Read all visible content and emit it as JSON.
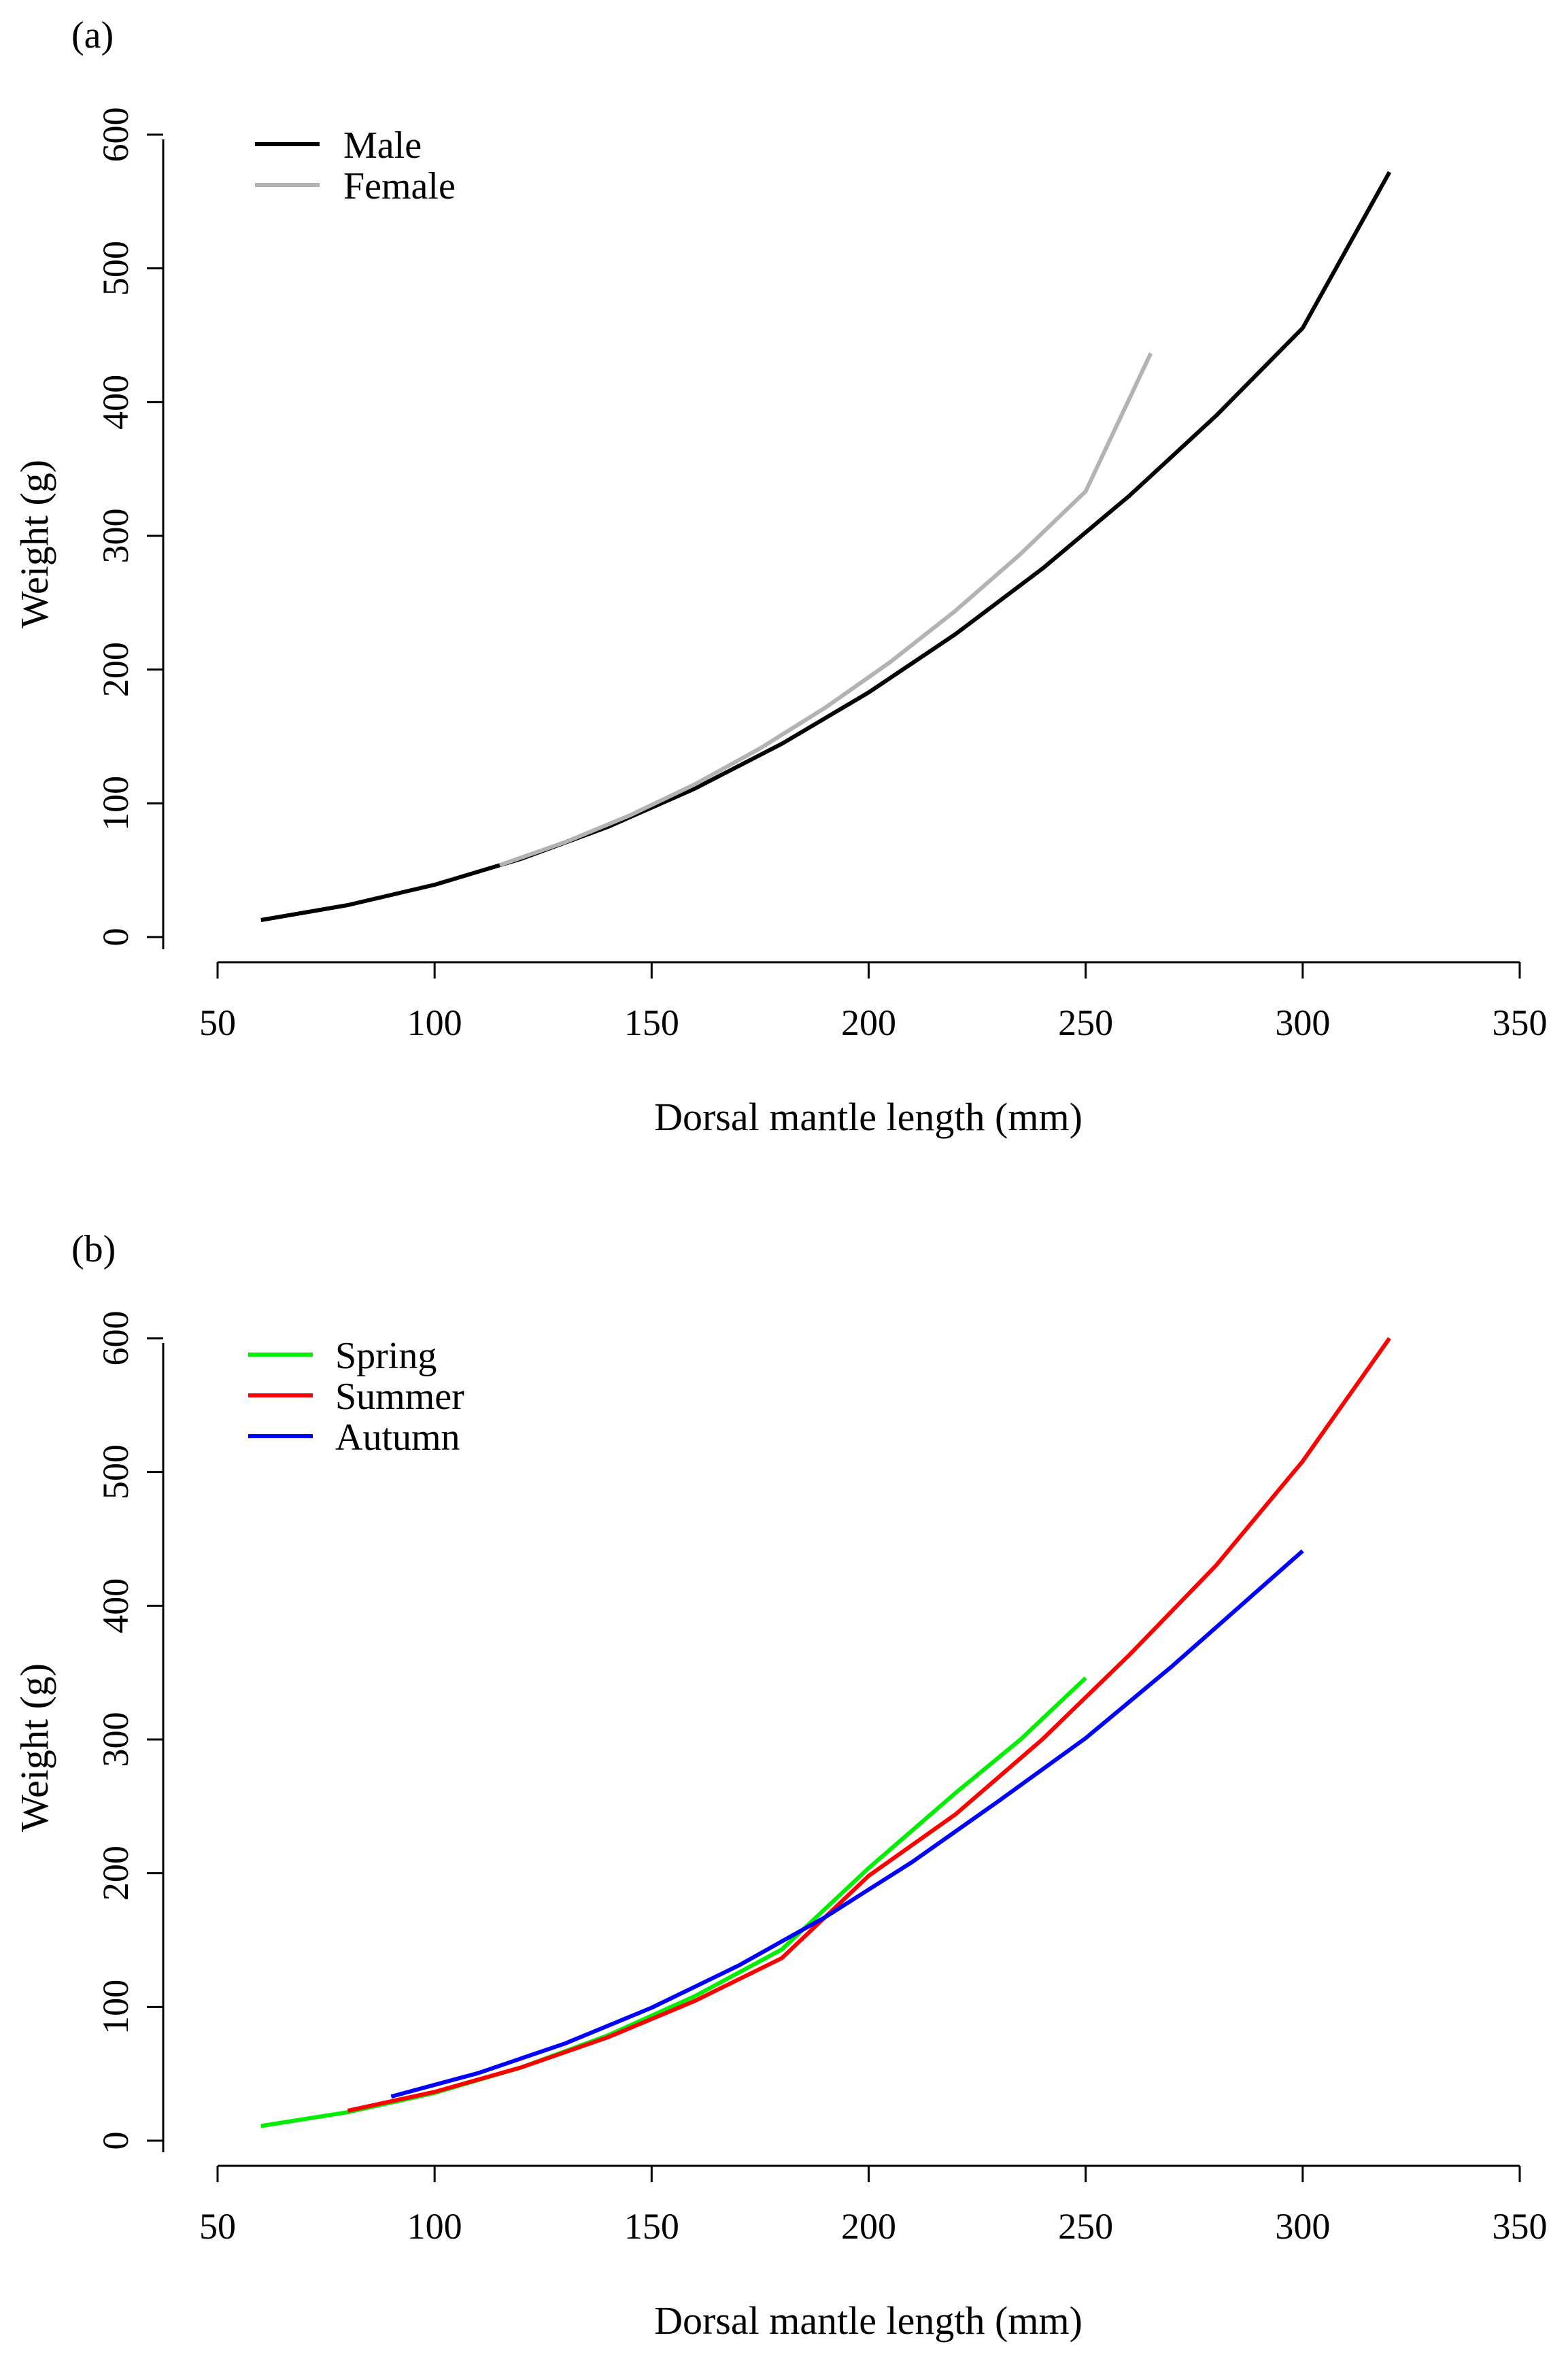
{
  "chart_data": [
    {
      "type": "line",
      "panel_label": "(a)",
      "xlabel": "Dorsal mantle length (mm)",
      "ylabel": "Weight (g)",
      "xlim": [
        50,
        350
      ],
      "ylim": [
        0,
        600
      ],
      "xticks": [
        50,
        100,
        150,
        200,
        250,
        300,
        350
      ],
      "yticks": [
        0,
        100,
        200,
        300,
        400,
        500,
        600
      ],
      "legend_position": "top-left",
      "series": [
        {
          "name": "Male",
          "color": "#000000",
          "x": [
            60,
            80,
            100,
            120,
            140,
            160,
            180,
            200,
            220,
            240,
            260,
            280,
            300,
            320
          ],
          "y": [
            12.7,
            23.9,
            39.1,
            58.6,
            82.5,
            111.1,
            144.5,
            182.9,
            226.5,
            275.4,
            329.8,
            389.7,
            455.4,
            572
          ]
        },
        {
          "name": "Female",
          "color": "#b3b3b3",
          "x": [
            115,
            130,
            145,
            160,
            175,
            190,
            205,
            220,
            235,
            250,
            265
          ],
          "y": [
            53.8,
            70.9,
            91.0,
            114.3,
            141.1,
            171.5,
            205.7,
            244.0,
            286.5,
            333.3,
            436.5
          ]
        }
      ]
    },
    {
      "type": "line",
      "panel_label": "(b)",
      "xlabel": "Dorsal mantle length (mm)",
      "ylabel": "Weight (g)",
      "xlim": [
        50,
        350
      ],
      "ylim": [
        0,
        600
      ],
      "xticks": [
        50,
        100,
        150,
        200,
        250,
        300,
        350
      ],
      "yticks": [
        0,
        100,
        200,
        300,
        400,
        500,
        600
      ],
      "legend_position": "top-left",
      "series": [
        {
          "name": "Spring",
          "color": "#00ee00",
          "x": [
            60,
            80,
            100,
            120,
            140,
            160,
            180,
            200,
            220,
            235,
            250
          ],
          "y": [
            11,
            21.3,
            35.7,
            54.8,
            78.8,
            108.1,
            143.0,
            203.8,
            260,
            300,
            346
          ]
        },
        {
          "name": "Summer",
          "color": "#ff0000",
          "x": [
            80,
            100,
            120,
            140,
            160,
            180,
            200,
            220,
            240,
            260,
            280,
            300,
            320
          ],
          "y": [
            22.4,
            36.5,
            54.8,
            77.4,
            104.6,
            136.5,
            198,
            244,
            300,
            363,
            430,
            508,
            600
          ]
        },
        {
          "name": "Autumn",
          "color": "#0000ff",
          "x": [
            90,
            110,
            130,
            150,
            170,
            190,
            210,
            230,
            250,
            270,
            300
          ],
          "y": [
            33,
            50.5,
            72.6,
            99.4,
            130.9,
            167.2,
            208.3,
            254.1,
            301,
            355,
            441
          ]
        }
      ]
    }
  ]
}
